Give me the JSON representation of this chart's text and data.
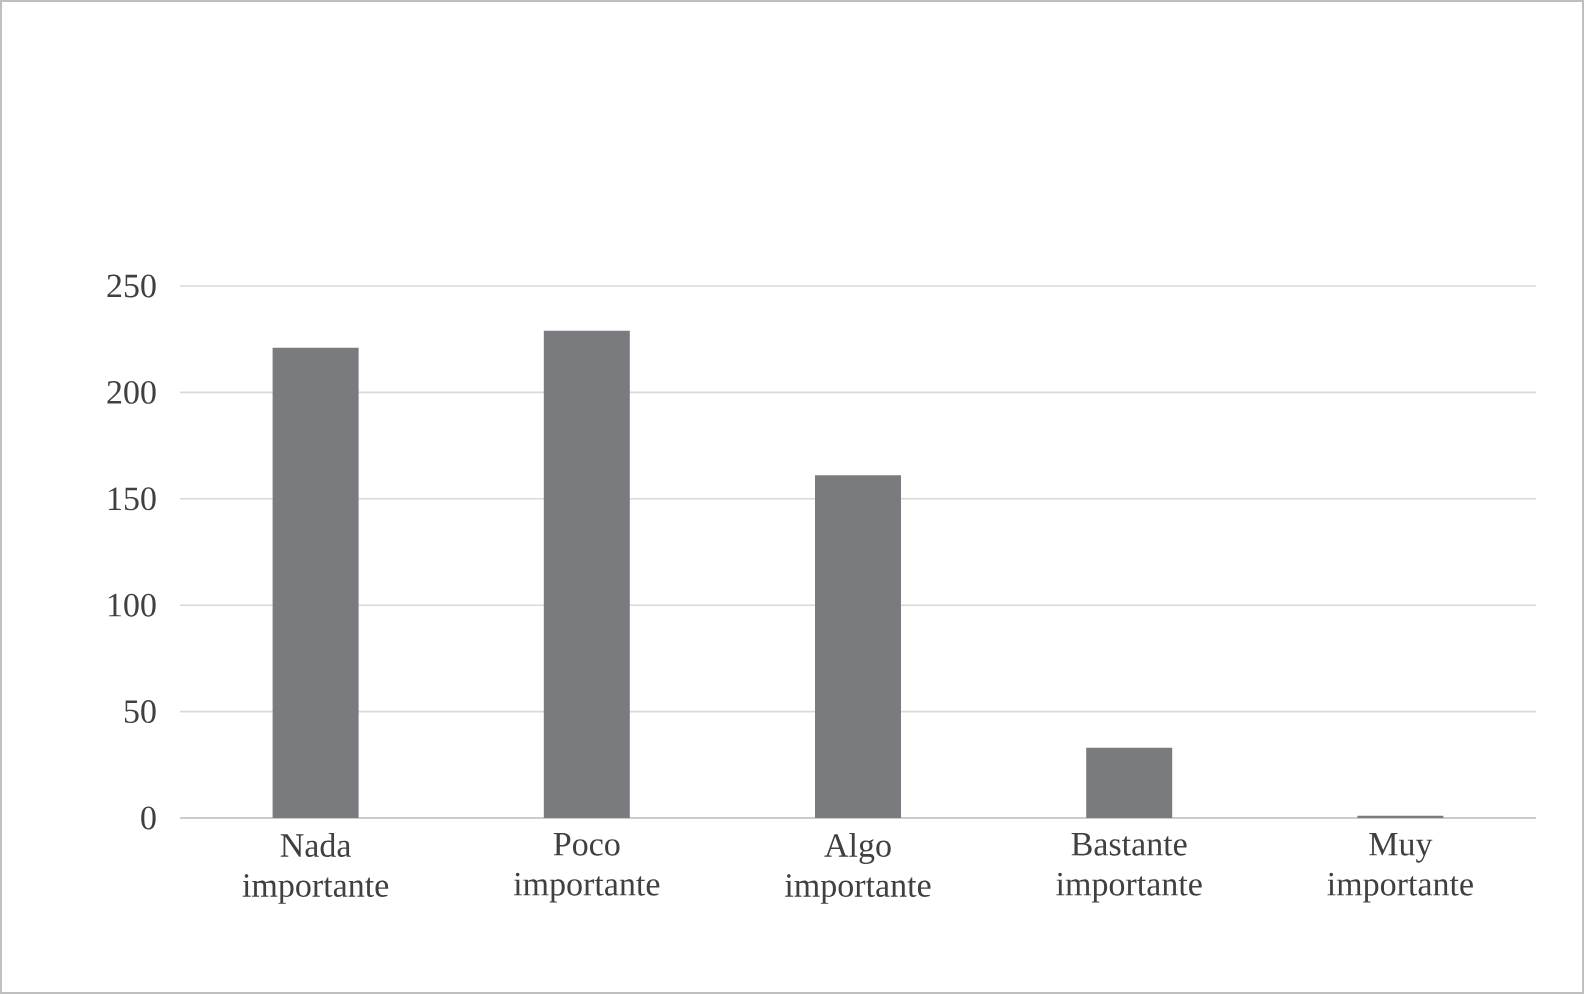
{
  "chart_data": {
    "type": "bar",
    "categories": [
      "Nada importante",
      "Poco importante",
      "Algo importante",
      "Bastante importante",
      "Muy importante"
    ],
    "values": [
      221,
      229,
      161,
      33,
      1
    ],
    "color": "#7a7b7f",
    "ylim": [
      0,
      250
    ],
    "yticks": [
      0,
      50,
      100,
      150,
      200,
      250
    ],
    "grid": "y"
  }
}
